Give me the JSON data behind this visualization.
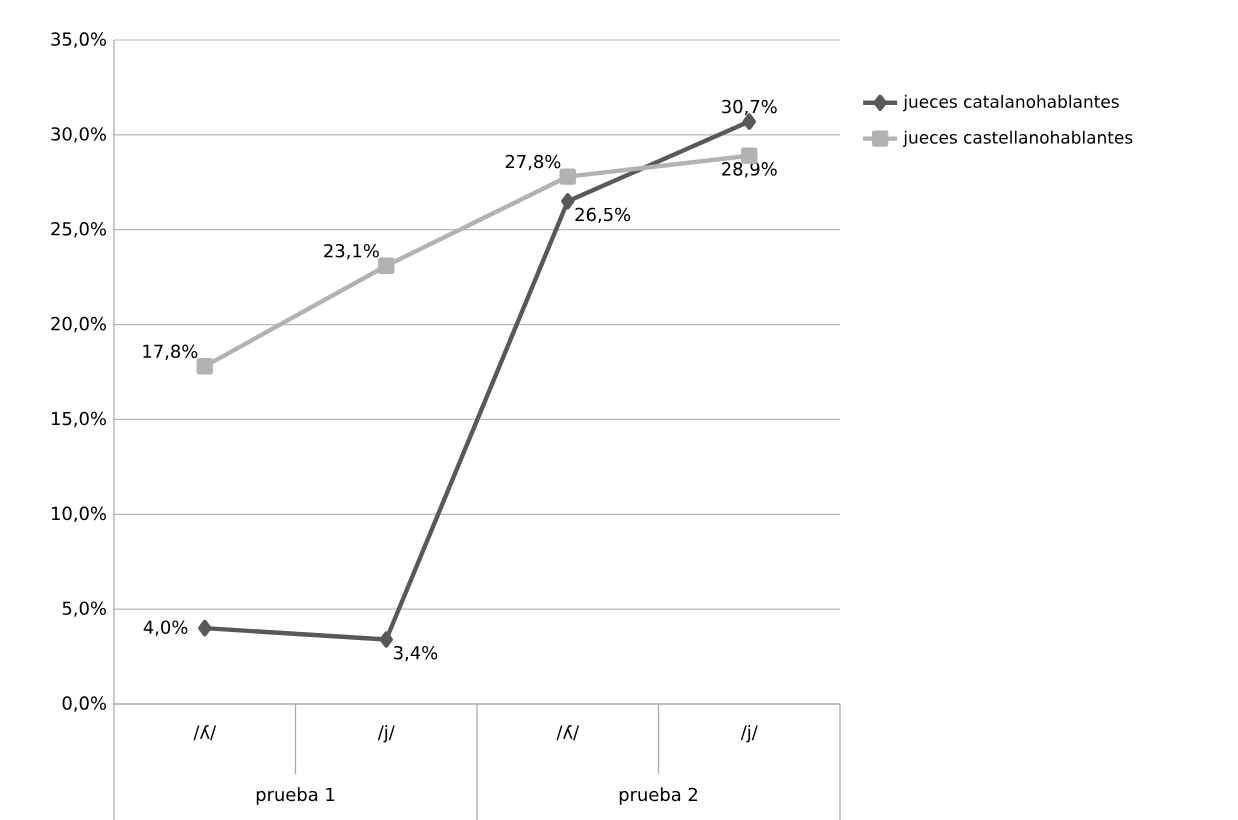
{
  "chart_data": {
    "type": "line",
    "categories": [
      "/ʎ/",
      "/j/",
      "/ʎ/",
      "/j/"
    ],
    "series": [
      {
        "name": "jueces catalanohablantes",
        "color": "#595959",
        "marker": "diamond",
        "values": [
          4.0,
          3.4,
          26.5,
          30.7
        ],
        "value_labels": [
          "4,0%",
          "3,4%",
          "26,5%",
          "30,7%"
        ]
      },
      {
        "name": "jueces castellanohablantes",
        "color": "#b2b2b2",
        "marker": "square",
        "values": [
          17.8,
          23.1,
          27.8,
          28.9
        ],
        "value_labels": [
          "17,8%",
          "23,1%",
          "27,8%",
          "28,9%"
        ]
      }
    ],
    "annotations": [
      "prueba 1",
      "prueba 2"
    ],
    "ylim": [
      0,
      35
    ],
    "yticks": [
      {
        "value": 0,
        "label": "0,0%"
      },
      {
        "value": 5,
        "label": "5,0%"
      },
      {
        "value": 10,
        "label": "10,0%"
      },
      {
        "value": 15,
        "label": "15,0%"
      },
      {
        "value": 20,
        "label": "20,0%"
      },
      {
        "value": 25,
        "label": "25,0%"
      },
      {
        "value": 30,
        "label": "30,0%"
      },
      {
        "value": 35,
        "label": "35,0%"
      }
    ],
    "grid": "y",
    "legend": "top right"
  }
}
